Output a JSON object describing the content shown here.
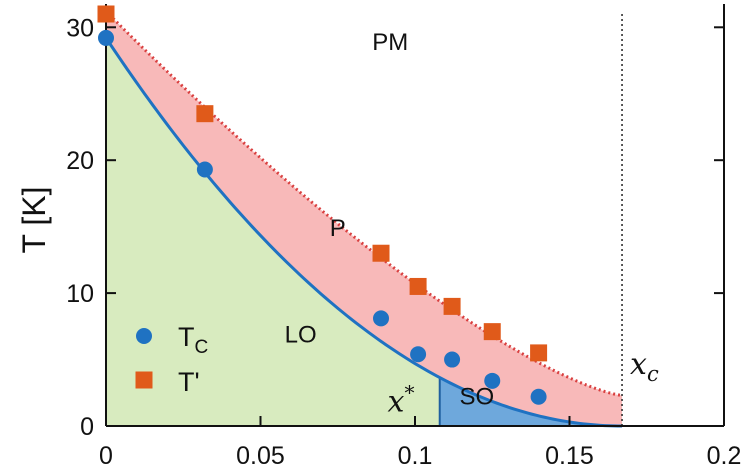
{
  "chart_data": {
    "type": "scatter",
    "xlabel": "",
    "ylabel": "T [K]",
    "xlim": [
      0,
      0.2
    ],
    "ylim": [
      0,
      31
    ],
    "xticks": [
      0,
      0.05,
      0.1,
      0.15,
      0.2
    ],
    "xtick_labels": [
      "0",
      "0.05",
      "0.1",
      "0.15",
      "0.2"
    ],
    "yticks": [
      0,
      10,
      20,
      30
    ],
    "ytick_labels": [
      "0",
      "10",
      "20",
      "30"
    ],
    "grid": false,
    "legend_position": "lower-left",
    "series": [
      {
        "name": "T_C",
        "legend_main": "T",
        "legend_sub": "C",
        "marker": "circle",
        "color": "#1f72c2",
        "x": [
          0.0,
          0.032,
          0.089,
          0.101,
          0.112,
          0.125,
          0.14
        ],
        "y": [
          29.2,
          19.3,
          8.1,
          5.4,
          5.0,
          3.4,
          2.2
        ]
      },
      {
        "name": "T'",
        "legend_main": "T'",
        "marker": "square",
        "color": "#e05a1a",
        "x": [
          0.0,
          0.032,
          0.089,
          0.101,
          0.112,
          0.125,
          0.14
        ],
        "y": [
          31.0,
          23.5,
          13.0,
          10.5,
          9.0,
          7.1,
          5.5
        ]
      }
    ],
    "curves": {
      "tc_fit": {
        "x0": 0.0,
        "y0": 29.2,
        "xc": 0.167,
        "exponent": 2.0,
        "color": "#1f72c2"
      },
      "tprime_fit": {
        "x0": 0.0,
        "y0": 31.2,
        "xc": 0.167,
        "y_at_xc": 2.3,
        "color": "#d94040"
      }
    },
    "regions": {
      "lo_color": "#d8ebbf",
      "p_color": "#f8b9b9",
      "so_color": "#6ea8dc",
      "so_x_range": [
        0.108,
        0.167
      ]
    },
    "annotations": {
      "pm": {
        "text": "PM",
        "x": 0.092,
        "y": 28.3
      },
      "p": {
        "text": "P",
        "x": 0.075,
        "y": 14.3
      },
      "lo": {
        "text": "LO",
        "x": 0.063,
        "y": 6.3
      },
      "so": {
        "text": "SO",
        "x": 0.12,
        "y": 1.6
      },
      "x_star": {
        "text_main": "x",
        "text_sup": "*",
        "x": 0.1,
        "tick_x": 0.108
      },
      "x_c": {
        "text_main": "x",
        "text_sub": "c",
        "x": 0.167
      }
    },
    "vline_x": 0.167
  }
}
